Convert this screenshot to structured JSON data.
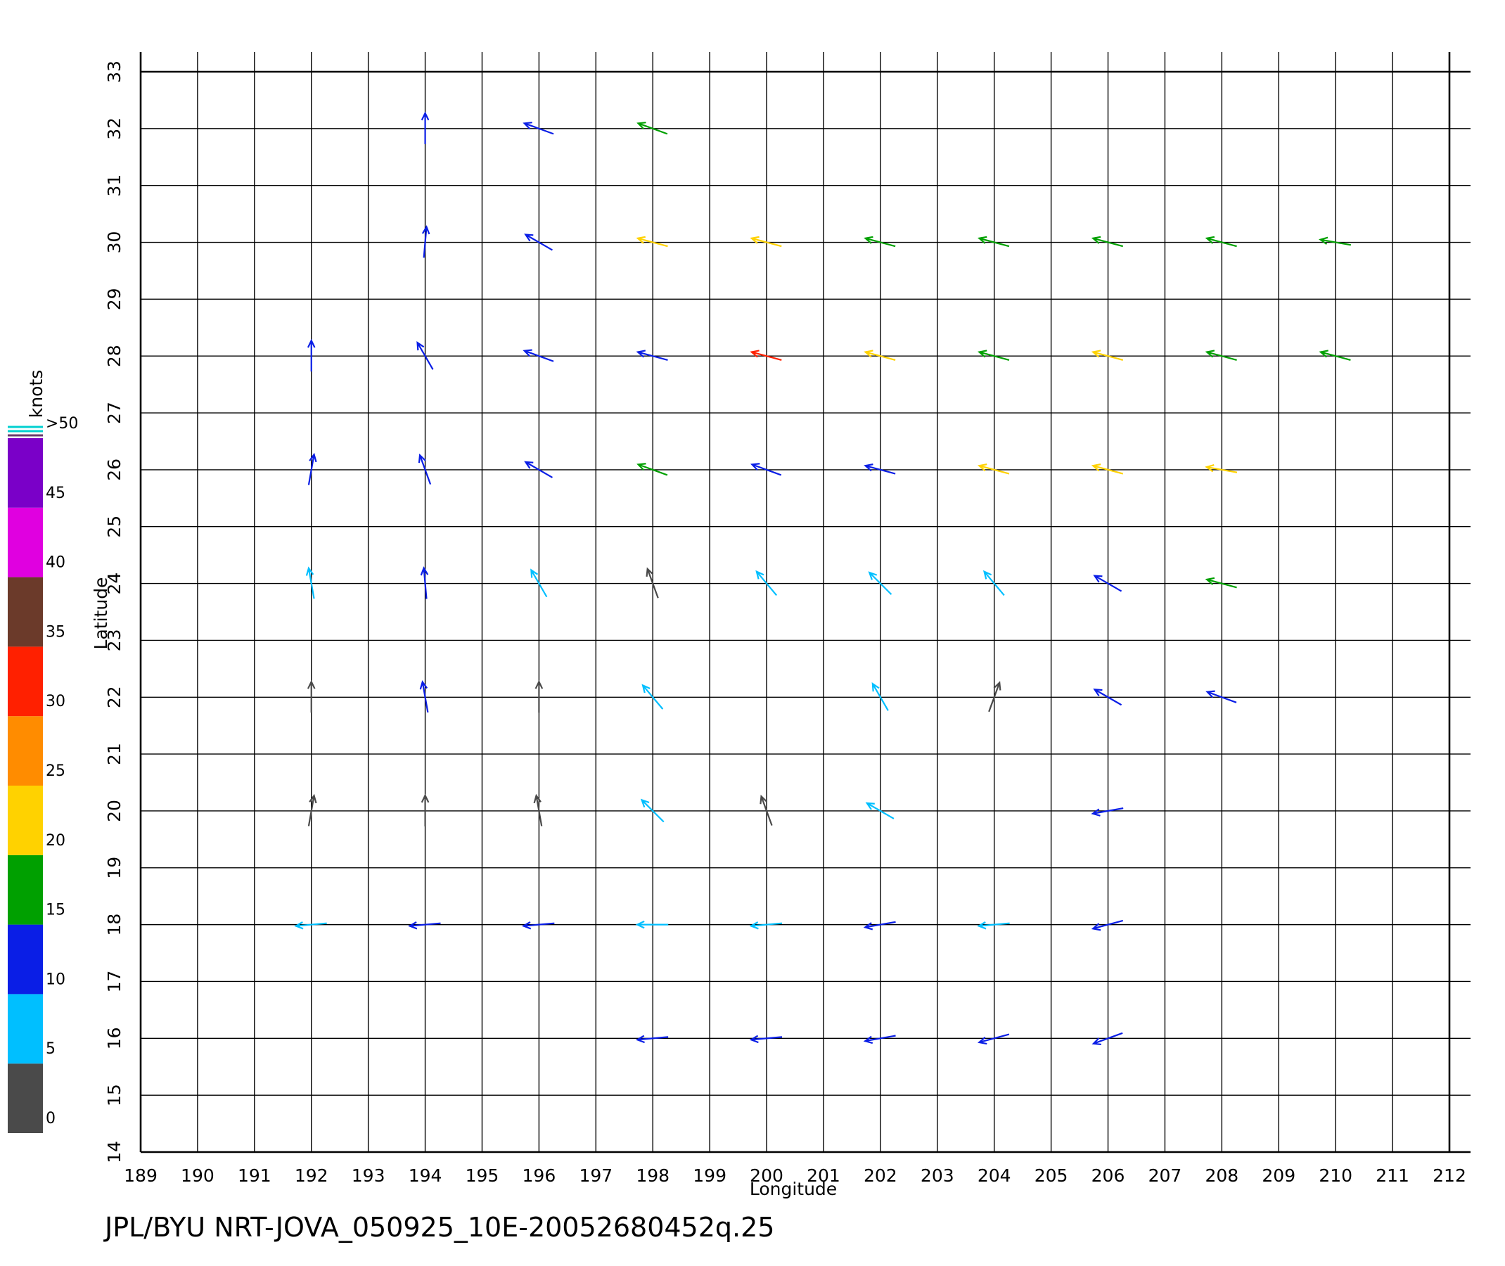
{
  "chart_data": {
    "type": "vector",
    "title": "JPL/BYU  NRT-JOVA_050925_10E-20052680452q.25",
    "x_label": "Longitude",
    "y_label": "Latitude",
    "xlim": [
      189,
      212
    ],
    "ylim": [
      14,
      33
    ],
    "xticks": [
      189,
      190,
      191,
      192,
      193,
      194,
      195,
      196,
      197,
      198,
      199,
      200,
      201,
      202,
      203,
      204,
      205,
      206,
      207,
      208,
      209,
      210,
      211,
      212
    ],
    "yticks": [
      14,
      15,
      16,
      17,
      18,
      19,
      20,
      21,
      22,
      23,
      24,
      25,
      26,
      27,
      28,
      29,
      30,
      31,
      32,
      33
    ],
    "grid": true,
    "colorbar": {
      "label": "knots",
      "ticks": [
        0,
        5,
        10,
        15,
        20,
        25,
        30,
        35,
        40,
        45,
        {
          "value": 50,
          "label": ">50"
        }
      ],
      "colors": [
        "#4a4a4a",
        "#00bfff",
        "#0a1ee6",
        "#00a000",
        "#ffd200",
        "#ff8c00",
        "#ff2000",
        "#6b3a2a",
        "#e000e0",
        "#7a00c8"
      ]
    },
    "lon": [
      198,
      200,
      202,
      204,
      206,
      192,
      194,
      196,
      198,
      200,
      202,
      204,
      206,
      192,
      194,
      196,
      198,
      200,
      202,
      206,
      192,
      194,
      196,
      198,
      202,
      204,
      206,
      208,
      192,
      194,
      196,
      198,
      200,
      202,
      204,
      206,
      208,
      192,
      194,
      196,
      198,
      200,
      202,
      204,
      206,
      208,
      192,
      194,
      196,
      198,
      200,
      202,
      204,
      206,
      208,
      210,
      194,
      196,
      198,
      200,
      202,
      204,
      206,
      208,
      210,
      194,
      196,
      198
    ],
    "lat": [
      16,
      16,
      16,
      16,
      16,
      18,
      18,
      18,
      18,
      18,
      18,
      18,
      18,
      20,
      20,
      20,
      20,
      20,
      20,
      20,
      22,
      22,
      22,
      22,
      22,
      22,
      22,
      22,
      24,
      24,
      24,
      24,
      24,
      24,
      24,
      24,
      24,
      26,
      26,
      26,
      26,
      26,
      26,
      26,
      26,
      26,
      28,
      28,
      28,
      28,
      28,
      28,
      28,
      28,
      28,
      28,
      30,
      30,
      30,
      30,
      30,
      30,
      30,
      30,
      30,
      32,
      32,
      32
    ],
    "speed": [
      10,
      11,
      12,
      12,
      11,
      9,
      10,
      10,
      8,
      9,
      10,
      9,
      10,
      3,
      4,
      3,
      8,
      4,
      8,
      11,
      3,
      11,
      4,
      8,
      7,
      3,
      10,
      12,
      9,
      12,
      7,
      4,
      8,
      7,
      9,
      14,
      18,
      12,
      13,
      11,
      17,
      12,
      14,
      22,
      23,
      20,
      12,
      11,
      12,
      14,
      31,
      20,
      19,
      22,
      18,
      17,
      13,
      12,
      22,
      20,
      18,
      19,
      18,
      17,
      16,
      13,
      13,
      16
    ],
    "direction": [
      265,
      265,
      260,
      255,
      250,
      265,
      265,
      265,
      270,
      265,
      260,
      265,
      255,
      10,
      0,
      350,
      315,
      340,
      300,
      260,
      0,
      350,
      0,
      320,
      330,
      20,
      300,
      290,
      350,
      355,
      330,
      340,
      320,
      315,
      320,
      300,
      285,
      10,
      340,
      300,
      290,
      290,
      285,
      285,
      285,
      280,
      0,
      330,
      290,
      285,
      285,
      285,
      285,
      285,
      285,
      285,
      5,
      300,
      285,
      285,
      285,
      285,
      285,
      285,
      280,
      0,
      290,
      290
    ]
  }
}
